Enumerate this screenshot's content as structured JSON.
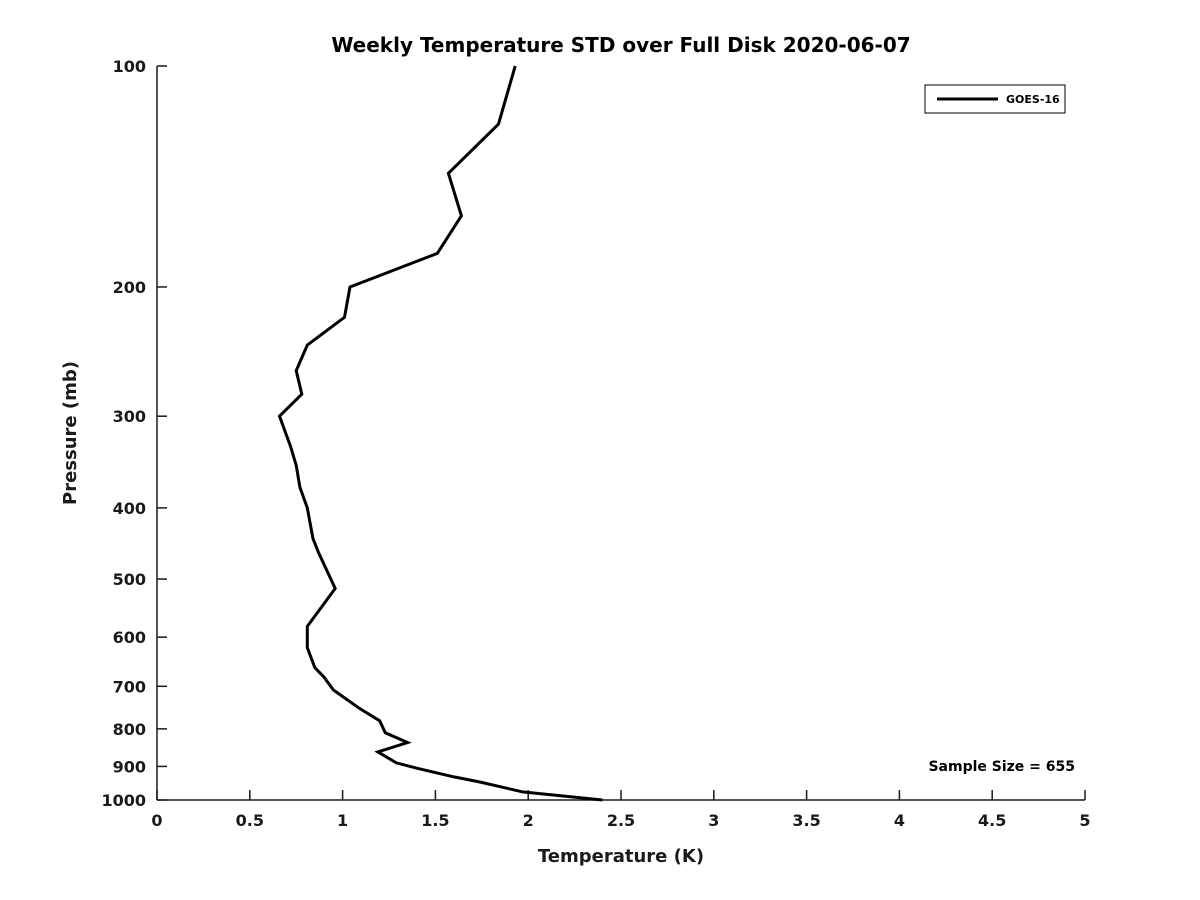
{
  "figure": {
    "background": "#ffffff"
  },
  "colors": {
    "axis": "#1a1a1a",
    "tick_text": "#1a1a1a",
    "title_text": "#000000",
    "series_line": "#000000",
    "legend_border": "#000000",
    "legend_background": "#ffffff"
  },
  "annotation": {
    "text": "Sample Size = 655"
  },
  "legend": {
    "position": "top-right",
    "entries": [
      {
        "label": "GOES-16",
        "color": "#000000",
        "line_width": 3
      }
    ]
  },
  "chart_data": {
    "type": "line",
    "title": "Weekly Temperature STD over Full Disk 2020-06-07",
    "xlabel": "Temperature (K)",
    "ylabel": "Pressure (mb)",
    "xlim": [
      0,
      5
    ],
    "ylim": [
      100,
      1000
    ],
    "x_scale": "linear",
    "y_scale": "log",
    "y_inverted": true,
    "grid": false,
    "box": false,
    "tick_direction": "in",
    "x_ticks": [
      0,
      0.5,
      1,
      1.5,
      2,
      2.5,
      3,
      3.5,
      4,
      4.5,
      5
    ],
    "x_tick_labels": [
      "0",
      "0.5",
      "1",
      "1.5",
      "2",
      "2.5",
      "3",
      "3.5",
      "4",
      "4.5",
      "5"
    ],
    "y_ticks": [
      100,
      200,
      300,
      400,
      500,
      600,
      700,
      800,
      900,
      1000
    ],
    "y_tick_labels": [
      "100",
      "200",
      "300",
      "400",
      "500",
      "600",
      "700",
      "800",
      "900",
      "1000"
    ],
    "legend_entries": [
      "GOES-16"
    ],
    "annotations": [
      "Sample Size = 655"
    ],
    "series": [
      {
        "name": "GOES-16",
        "color": "#000000",
        "line_width": 3,
        "x_name": "temperature_std_K",
        "y_name": "pressure_mb",
        "points": [
          [
            1.93,
            100
          ],
          [
            1.84,
            120
          ],
          [
            1.57,
            140
          ],
          [
            1.64,
            160
          ],
          [
            1.51,
            180
          ],
          [
            1.04,
            200
          ],
          [
            1.01,
            220
          ],
          [
            0.81,
            240
          ],
          [
            0.75,
            260
          ],
          [
            0.78,
            280
          ],
          [
            0.66,
            300
          ],
          [
            0.72,
            330
          ],
          [
            0.75,
            350
          ],
          [
            0.77,
            375
          ],
          [
            0.81,
            400
          ],
          [
            0.84,
            440
          ],
          [
            0.87,
            460
          ],
          [
            0.96,
            515
          ],
          [
            0.81,
            580
          ],
          [
            0.81,
            620
          ],
          [
            0.85,
            660
          ],
          [
            0.9,
            680
          ],
          [
            0.95,
            708
          ],
          [
            1.09,
            750
          ],
          [
            1.2,
            780
          ],
          [
            1.23,
            810
          ],
          [
            1.35,
            835
          ],
          [
            1.19,
            860
          ],
          [
            1.29,
            890
          ],
          [
            1.4,
            905
          ],
          [
            1.6,
            930
          ],
          [
            1.74,
            945
          ],
          [
            1.97,
            975
          ],
          [
            2.4,
            1000
          ]
        ]
      }
    ]
  }
}
